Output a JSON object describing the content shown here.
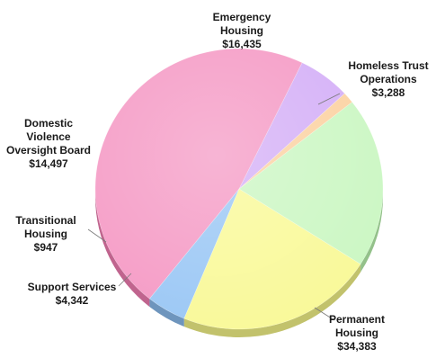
{
  "chart_data": {
    "type": "pie",
    "title": "",
    "start_angle_deg": 64,
    "direction": "counterclockwise",
    "slices": [
      {
        "id": "permanent",
        "label_lines": [
          "Permanent",
          "Housing"
        ],
        "value_label": "$34,383",
        "value": 34383,
        "color": "#f59cc6",
        "side": "#c0648e"
      },
      {
        "id": "homeless",
        "label_lines": [
          "Homeless Trust",
          "Operations"
        ],
        "value_label": "$3,288",
        "value": 3288,
        "color": "#9cc8f5",
        "side": "#6e95bd"
      },
      {
        "id": "emergency",
        "label_lines": [
          "Emergency",
          "Housing"
        ],
        "value_label": "$16,435",
        "value": 16435,
        "color": "#f9f99a",
        "side": "#c2c26c"
      },
      {
        "id": "domestic",
        "label_lines": [
          "Domestic",
          "Violence",
          "Oversight Board"
        ],
        "value_label": "$14,497",
        "value": 14497,
        "color": "#ccf7c4",
        "side": "#93c18a"
      },
      {
        "id": "transitional",
        "label_lines": [
          "Transitional",
          "Housing"
        ],
        "value_label": "$947",
        "value": 947,
        "color": "#fcd3a4",
        "side": "#c99e70"
      },
      {
        "id": "support",
        "label_lines": [
          "Support Services"
        ],
        "value_label": "$4,342",
        "value": 4342,
        "color": "#d5b1f7",
        "side": "#9f7cc2"
      }
    ]
  }
}
